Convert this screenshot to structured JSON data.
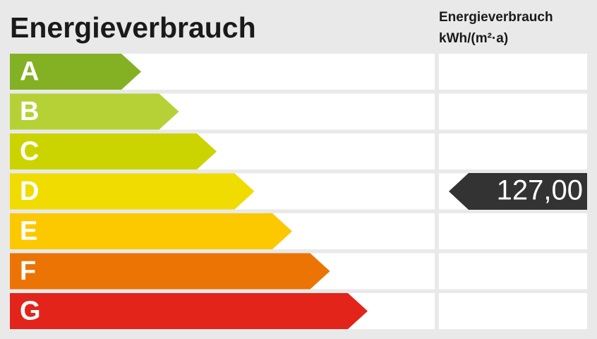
{
  "header": {
    "title": "Energieverbrauch",
    "column_title": "Energieverbrauch",
    "column_unit": "kWh/(m²·a)"
  },
  "classes": [
    {
      "label": "A",
      "color": "#84b024"
    },
    {
      "label": "B",
      "color": "#b6d136"
    },
    {
      "label": "C",
      "color": "#ccd400"
    },
    {
      "label": "D",
      "color": "#f0dc00"
    },
    {
      "label": "E",
      "color": "#fcc800"
    },
    {
      "label": "F",
      "color": "#ec7405"
    },
    {
      "label": "G",
      "color": "#e3241b"
    }
  ],
  "indicator": {
    "value": "127,00"
  }
}
